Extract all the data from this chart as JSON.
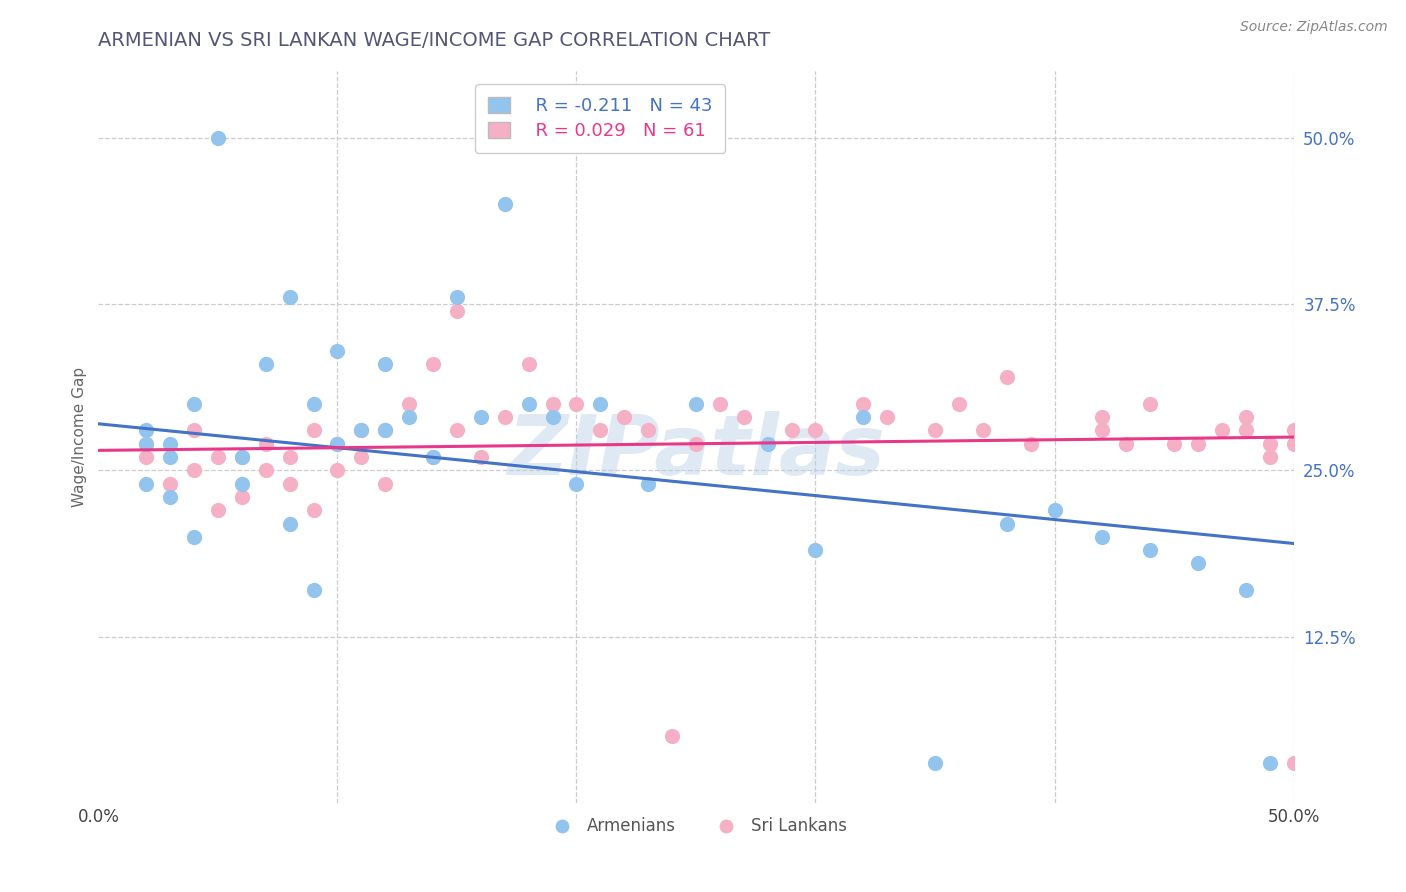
{
  "title": "ARMENIAN VS SRI LANKAN WAGE/INCOME GAP CORRELATION CHART",
  "source": "Source: ZipAtlas.com",
  "ylabel": "Wage/Income Gap",
  "xlim": [
    0.0,
    0.5
  ],
  "ylim": [
    0.0,
    0.55
  ],
  "xtick_positions": [
    0.0,
    0.1,
    0.2,
    0.3,
    0.4,
    0.5
  ],
  "xtick_labels": [
    "0.0%",
    "",
    "",
    "",
    "",
    "50.0%"
  ],
  "ytick_positions": [
    0.0,
    0.125,
    0.25,
    0.375,
    0.5
  ],
  "ytick_labels": [
    "",
    "12.5%",
    "25.0%",
    "37.5%",
    "50.0%"
  ],
  "armenian_color": "#93c4ed",
  "srilanka_color": "#f5b0c5",
  "armenian_line_color": "#4472c4",
  "srilanka_line_color": "#e8388a",
  "legend_R_armenian": "R = -0.211",
  "legend_N_armenian": "N = 43",
  "legend_R_srilanka": "R = 0.029",
  "legend_N_srilanka": "N = 61",
  "armenian_x": [
    0.02,
    0.02,
    0.02,
    0.03,
    0.03,
    0.03,
    0.04,
    0.04,
    0.05,
    0.06,
    0.06,
    0.07,
    0.08,
    0.08,
    0.09,
    0.09,
    0.1,
    0.1,
    0.11,
    0.12,
    0.12,
    0.13,
    0.14,
    0.15,
    0.16,
    0.17,
    0.18,
    0.19,
    0.2,
    0.21,
    0.23,
    0.25,
    0.28,
    0.3,
    0.32,
    0.35,
    0.38,
    0.4,
    0.42,
    0.44,
    0.46,
    0.48,
    0.49
  ],
  "armenian_y": [
    0.27,
    0.28,
    0.24,
    0.26,
    0.23,
    0.27,
    0.3,
    0.2,
    0.5,
    0.24,
    0.26,
    0.33,
    0.38,
    0.21,
    0.3,
    0.16,
    0.34,
    0.27,
    0.28,
    0.33,
    0.28,
    0.29,
    0.26,
    0.38,
    0.29,
    0.45,
    0.3,
    0.29,
    0.24,
    0.3,
    0.24,
    0.3,
    0.27,
    0.19,
    0.29,
    0.03,
    0.21,
    0.22,
    0.2,
    0.19,
    0.18,
    0.16,
    0.03
  ],
  "srilanka_x": [
    0.02,
    0.02,
    0.03,
    0.04,
    0.04,
    0.05,
    0.05,
    0.06,
    0.06,
    0.07,
    0.07,
    0.08,
    0.08,
    0.09,
    0.09,
    0.1,
    0.1,
    0.11,
    0.11,
    0.12,
    0.12,
    0.13,
    0.14,
    0.14,
    0.15,
    0.15,
    0.16,
    0.17,
    0.18,
    0.19,
    0.2,
    0.21,
    0.22,
    0.23,
    0.24,
    0.25,
    0.26,
    0.27,
    0.29,
    0.3,
    0.32,
    0.33,
    0.35,
    0.36,
    0.37,
    0.38,
    0.39,
    0.42,
    0.43,
    0.44,
    0.45,
    0.46,
    0.47,
    0.48,
    0.48,
    0.49,
    0.49,
    0.5,
    0.5,
    0.5,
    0.42
  ],
  "srilanka_y": [
    0.27,
    0.26,
    0.24,
    0.25,
    0.28,
    0.22,
    0.26,
    0.23,
    0.26,
    0.25,
    0.27,
    0.24,
    0.26,
    0.22,
    0.28,
    0.25,
    0.27,
    0.26,
    0.28,
    0.24,
    0.28,
    0.3,
    0.33,
    0.26,
    0.28,
    0.37,
    0.26,
    0.29,
    0.33,
    0.3,
    0.3,
    0.28,
    0.29,
    0.28,
    0.05,
    0.27,
    0.3,
    0.29,
    0.28,
    0.28,
    0.3,
    0.29,
    0.28,
    0.3,
    0.28,
    0.32,
    0.27,
    0.29,
    0.27,
    0.3,
    0.27,
    0.27,
    0.28,
    0.28,
    0.29,
    0.27,
    0.26,
    0.28,
    0.27,
    0.03,
    0.28
  ],
  "watermark": "ZIPatlas",
  "background_color": "#ffffff",
  "grid_color": "#cccccc",
  "title_color": "#555577",
  "source_color": "#888888",
  "axis_label_color": "#4472c4"
}
